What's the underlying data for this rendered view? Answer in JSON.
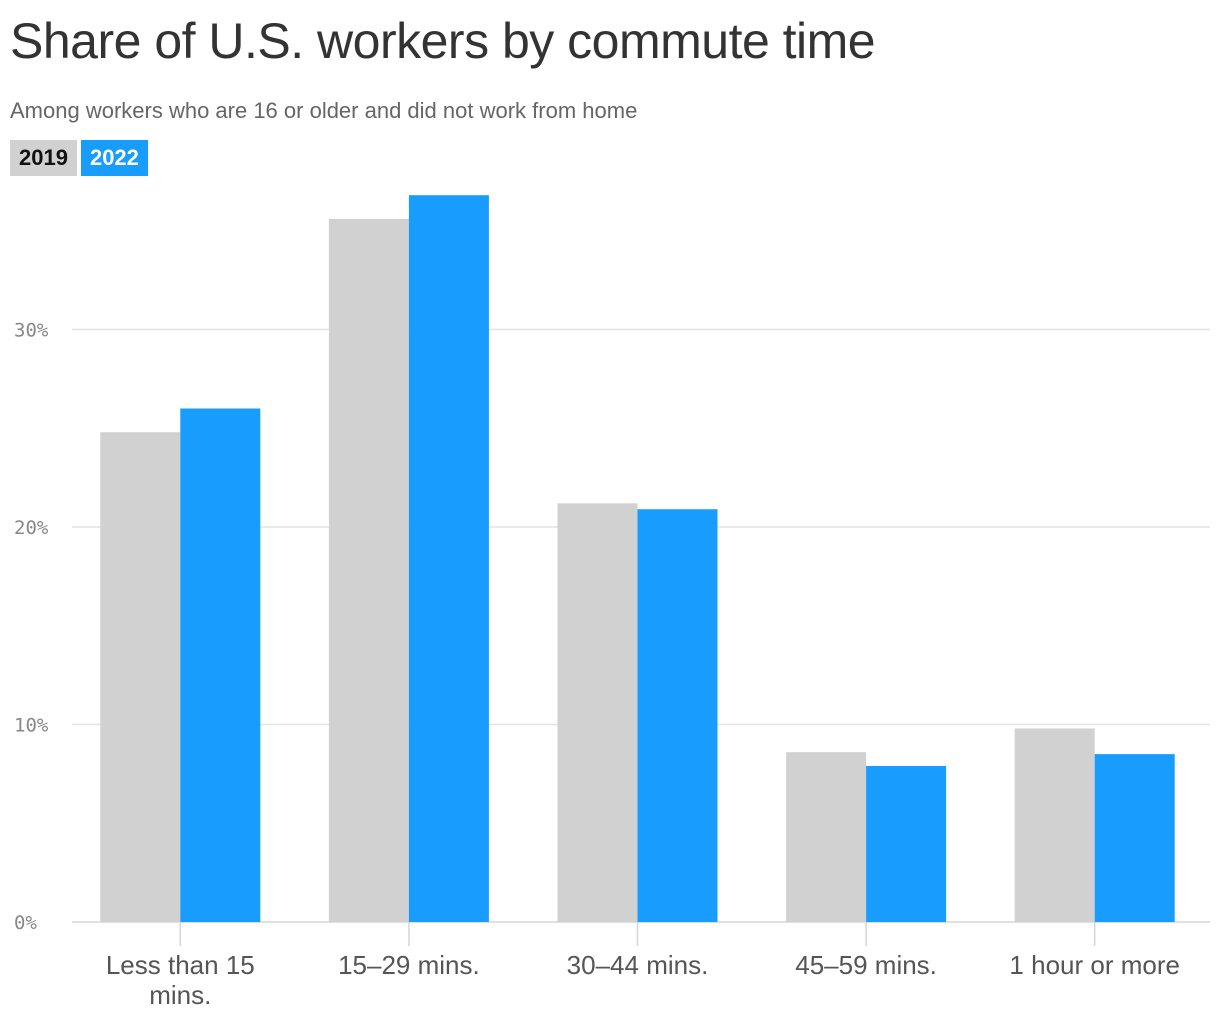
{
  "header": {
    "title": "Share of U.S. workers by commute time",
    "subtitle": "Among workers who are 16 or older and did not work from home"
  },
  "legend": [
    {
      "label": "2019",
      "color": "#d0d1d0"
    },
    {
      "label": "2022",
      "color": "#189dff"
    }
  ],
  "chart_data": {
    "type": "bar",
    "title": "Share of U.S. workers by commute time",
    "subtitle": "Among workers who are 16 or older and did not work from home",
    "categories": [
      [
        "Less than 15",
        "mins."
      ],
      [
        "15–29 mins."
      ],
      [
        "30–44 mins."
      ],
      [
        "45–59 mins."
      ],
      [
        "1 hour or more"
      ]
    ],
    "series": [
      {
        "name": "2019",
        "color": "#d0d1d0",
        "values": [
          24.8,
          35.6,
          21.2,
          8.6,
          9.8
        ]
      },
      {
        "name": "2022",
        "color": "#189dff",
        "values": [
          26.0,
          36.8,
          20.9,
          7.9,
          8.5
        ]
      }
    ],
    "yticks": [
      0,
      10,
      20,
      30
    ],
    "ytick_labels": [
      "0%",
      "10%",
      "20%",
      "30%"
    ],
    "ylim": [
      0,
      37
    ],
    "grid": true,
    "legend_position": "top-left"
  }
}
